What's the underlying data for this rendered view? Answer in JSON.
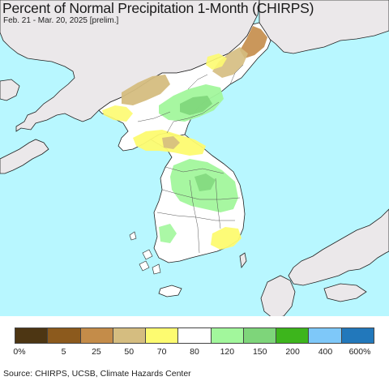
{
  "header": {
    "title": "Percent of Normal Precipitation 1-Month (CHIRPS)",
    "subtitle": "Feb. 21 - Mar. 20, 2025 [prelim.]"
  },
  "colors": {
    "ocean": "#b8f7ff",
    "land_outside": "#ebe8ea",
    "border": "#222222"
  },
  "legend": {
    "colors": [
      "#4d3613",
      "#8c5a1d",
      "#c48c49",
      "#d5bd80",
      "#fdfb70",
      "#ffffff",
      "#a2f79c",
      "#7ed57a",
      "#3db51c",
      "#7ec8f9",
      "#2278bb"
    ],
    "labels": [
      "0%",
      "5",
      "25",
      "50",
      "70",
      "80",
      "120",
      "150",
      "200",
      "400",
      "600%"
    ]
  },
  "footer": {
    "credits": "Source: CHIRPS, UCSB, Climate Hazards Center"
  }
}
